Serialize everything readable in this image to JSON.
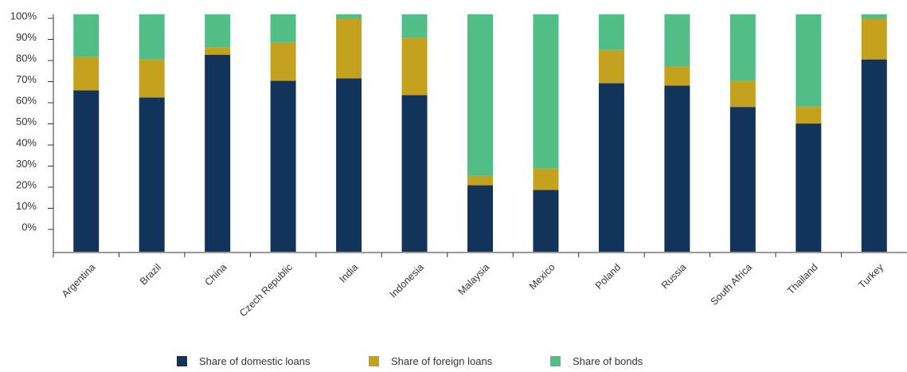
{
  "chart_data": {
    "type": "bar",
    "stacked": true,
    "title": "",
    "xlabel": "",
    "ylabel": "",
    "ylim": [
      0,
      100
    ],
    "y_ticks": [
      "100%",
      "90%",
      "80%",
      "70%",
      "60%",
      "50%",
      "40%",
      "30%",
      "20%",
      "10%",
      "0%"
    ],
    "grid": false,
    "legend_position": "bottom",
    "categories": [
      "Argentina",
      "Brazil",
      "China",
      "Czech Republic",
      "India",
      "Indonesia",
      "Malaysia",
      "Mexico",
      "Poland",
      "Russia",
      "South Africa",
      "Thailand",
      "Turkey"
    ],
    "series": [
      {
        "name": "Share of domestic loans",
        "color": "#12345b",
        "values": [
          68,
          65,
          83,
          72,
          73,
          66,
          28,
          26,
          71,
          70,
          61,
          54,
          81
        ]
      },
      {
        "name": "Share of foreign loans",
        "color": "#c4a21e",
        "values": [
          14,
          16,
          3,
          16,
          25,
          24,
          4,
          9,
          14,
          8,
          11,
          7,
          17
        ]
      },
      {
        "name": "Share of bonds",
        "color": "#51be88",
        "values": [
          18,
          19,
          14,
          12,
          2,
          10,
          68,
          65,
          15,
          22,
          28,
          39,
          2
        ]
      }
    ]
  }
}
